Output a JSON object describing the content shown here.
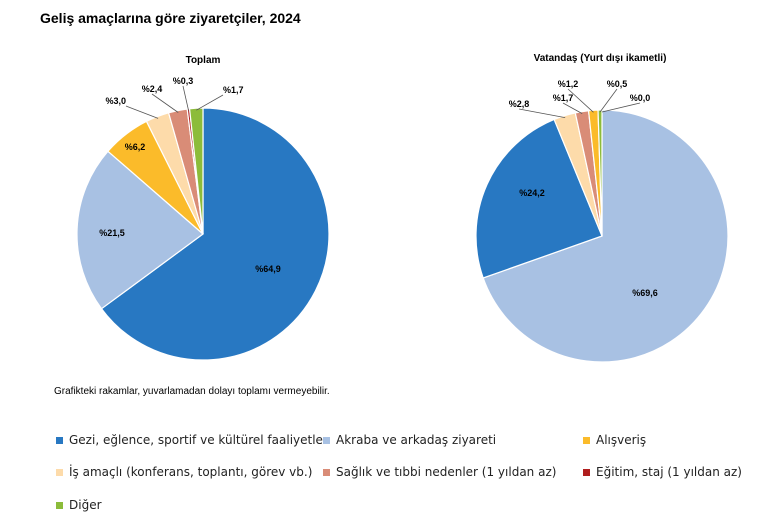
{
  "title": "Geliş amaçlarına göre ziyaretçiler, 2024",
  "note": "Grafikteki rakamlar, yuvarlamadan dolayı toplamı vermeyebilir.",
  "colors": {
    "gezi": "#2878c2",
    "akraba": "#a8c1e3",
    "alisveris": "#fbbb2a",
    "is": "#fddbaa",
    "saglik": "#d98c77",
    "egitim": "#b01e1e",
    "diger": "#8cbc3a"
  },
  "legend": [
    {
      "key": "gezi",
      "label": "Gezi, eğlence, sportif ve kültürel faaliyetler"
    },
    {
      "key": "akraba",
      "label": "Akraba ve arkadaş ziyareti"
    },
    {
      "key": "alisveris",
      "label": "Alışveriş"
    },
    {
      "key": "is",
      "label": "İş amaçlı (konferans, toplantı, görev vb.)"
    },
    {
      "key": "saglik",
      "label": "Sağlık ve tıbbi nedenler (1 yıldan az)"
    },
    {
      "key": "egitim",
      "label": "Eğitim, staj (1 yıldan az)"
    },
    {
      "key": "diger",
      "label": "Diğer"
    }
  ],
  "chart_data": [
    {
      "type": "pie",
      "title": "Toplam",
      "categories": [
        "Gezi, eğlence, sportif ve kültürel faaliyetler",
        "Akraba ve arkadaş ziyareti",
        "Alışveriş",
        "İş amaçlı (konferans, toplantı, görev vb.)",
        "Sağlık ve tıbbi nedenler (1 yıldan az)",
        "Eğitim, staj (1 yıldan az)",
        "Diğer"
      ],
      "keys": [
        "gezi",
        "akraba",
        "alisveris",
        "is",
        "saglik",
        "egitim",
        "diger"
      ],
      "values": [
        64.9,
        21.5,
        6.2,
        3.0,
        2.4,
        0.3,
        1.7
      ],
      "labels": [
        "%64,9",
        "%21,5",
        "%6,2",
        "%3,0",
        "%2,4",
        "%0,3",
        "%1,7"
      ]
    },
    {
      "type": "pie",
      "title": "Vatandaş (Yurt dışı ikametli)",
      "categories": [
        "Akraba ve arkadaş ziyareti",
        "Gezi, eğlence, sportif ve kültürel faaliyetler",
        "İş amaçlı (konferans, toplantı, görev vb.)",
        "Sağlık ve tıbbi nedenler (1 yıldan az)",
        "Alışveriş",
        "Diğer",
        "Eğitim, staj (1 yıldan az)"
      ],
      "keys": [
        "akraba",
        "gezi",
        "is",
        "saglik",
        "alisveris",
        "diger",
        "egitim"
      ],
      "values": [
        69.6,
        24.2,
        2.8,
        1.7,
        1.2,
        0.5,
        0.0
      ],
      "labels": [
        "%69,6",
        "%24,2",
        "%2,8",
        "%1,7",
        "%1,2",
        "%0,5",
        "%0,0"
      ]
    }
  ]
}
